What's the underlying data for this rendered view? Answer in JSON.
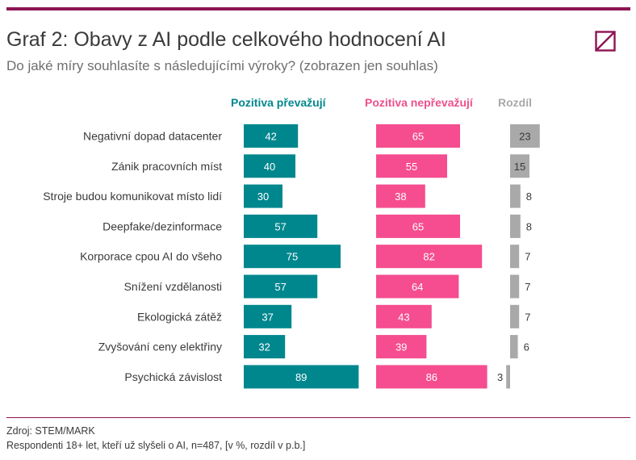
{
  "header": {
    "title": "Graf 2: Obavy z AI podle celkového hodnocení AI",
    "subtitle": "Do jaké míry souhlasíte s následujícími výroky? (zobrazen jen souhlas)"
  },
  "logo": {
    "icon": "stem-mark-logo-icon",
    "color": "#8c1552"
  },
  "footer": {
    "source": "Zdroj: STEM/MARK",
    "note": "Respondenti 18+ let, kteří už slyšeli o AI, n=487, [v %, rozdíl v p.b.]"
  },
  "colors": {
    "accent": "#8c1552",
    "teal": "#00878e",
    "pink": "#f54d8f",
    "gray": "#a9a9a9"
  },
  "chart_data": {
    "type": "bar",
    "orientation": "horizontal",
    "categories": [
      "Negativní dopad datacenter",
      "Zánik pracovních míst",
      "Stroje budou komunikovat místo lidí",
      "Deepfake/dezinformace",
      "Korporace cpou AI do všeho",
      "Snížení vzdělanosti",
      "Ekologická zátěž",
      "Zvyšování ceny elektřiny",
      "Psychická závislost"
    ],
    "series": [
      {
        "name": "Pozitiva převažují",
        "color": "#00878e",
        "values": [
          42,
          40,
          30,
          57,
          75,
          57,
          37,
          32,
          89
        ]
      },
      {
        "name": "Pozitiva nepřevažují",
        "color": "#f54d8f",
        "values": [
          65,
          55,
          38,
          65,
          82,
          64,
          43,
          39,
          86
        ]
      },
      {
        "name": "Rozdíl",
        "color": "#a9a9a9",
        "values": [
          23,
          15,
          8,
          8,
          7,
          7,
          7,
          6,
          -3
        ],
        "data_labels": [
          "23",
          "15",
          "8",
          "8",
          "7",
          "7",
          "7",
          "6",
          "3"
        ]
      }
    ],
    "xlim": [
      0,
      100
    ],
    "legend": "top",
    "grid": false
  }
}
